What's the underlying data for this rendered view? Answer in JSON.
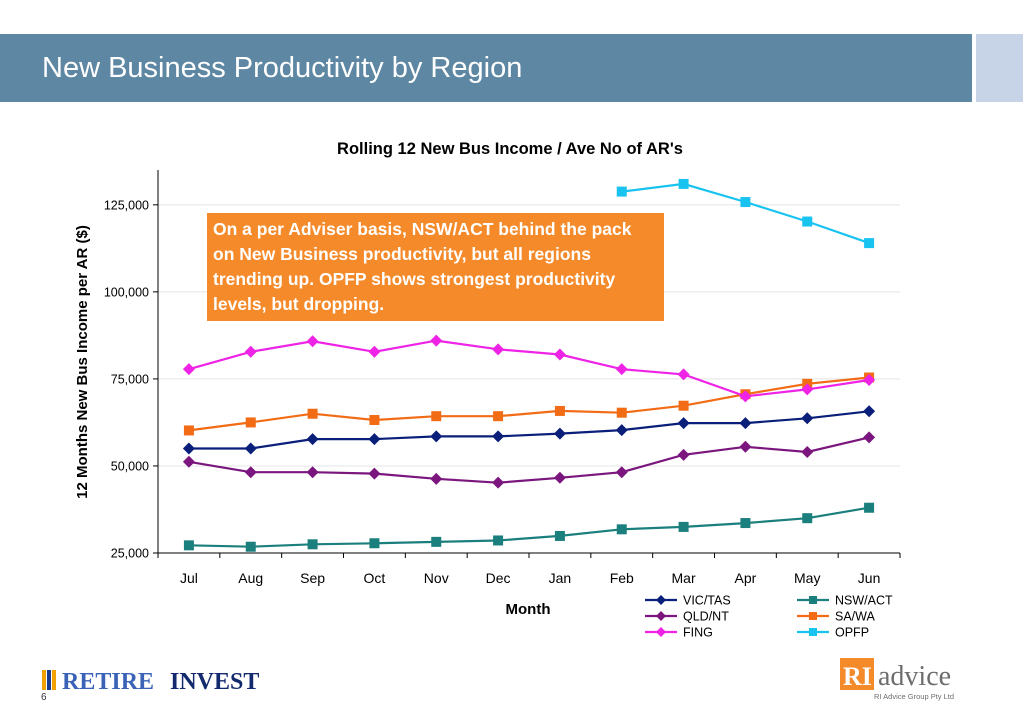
{
  "slide": {
    "title": "New Business Productivity by Region",
    "page_number": "6"
  },
  "callout": {
    "text": "On a per Adviser basis, NSW/ACT behind the pack on New Business productivity, but all regions trending up. OPFP shows strongest productivity levels, but dropping."
  },
  "logos": {
    "left": {
      "part1": "RETIRE",
      "part2": "INVEST"
    },
    "right": {
      "mark": "RI",
      "word": "advice",
      "tagline": "RI Advice Group Pty Ltd"
    }
  },
  "colors": {
    "header_band": "#5e87a3",
    "callout_bg": "#f58a2a"
  },
  "chart_data": {
    "type": "line",
    "title": "Rolling 12 New Bus Income / Ave No of AR's",
    "xlabel": "Month",
    "ylabel": "12 Months New Bus Income per AR ($)",
    "categories": [
      "Jul",
      "Aug",
      "Sep",
      "Oct",
      "Nov",
      "Dec",
      "Jan",
      "Feb",
      "Mar",
      "Apr",
      "May",
      "Jun"
    ],
    "ylim": [
      25000,
      135000
    ],
    "yticks": [
      25000,
      50000,
      75000,
      100000,
      125000
    ],
    "ytick_labels": [
      "25,000",
      "50,000",
      "75,000",
      "100,000",
      "125,000"
    ],
    "grid": true,
    "legend_position": "bottom-right",
    "series": [
      {
        "name": "VIC/TAS",
        "color": "#0a1f7a",
        "marker": "diamond",
        "values": [
          55000,
          55000,
          57700,
          57700,
          58500,
          58500,
          59300,
          60300,
          62300,
          62300,
          63700,
          65700
        ]
      },
      {
        "name": "NSW/ACT",
        "color": "#1b7f7e",
        "marker": "square",
        "values": [
          27200,
          26800,
          27500,
          27800,
          28200,
          28600,
          29900,
          31800,
          32500,
          33600,
          35000,
          38000
        ]
      },
      {
        "name": "QLD/NT",
        "color": "#7a167d",
        "marker": "diamond",
        "values": [
          51200,
          48200,
          48200,
          47800,
          46300,
          45200,
          46600,
          48200,
          53200,
          55500,
          54000,
          58200
        ]
      },
      {
        "name": "SA/WA",
        "color": "#f26b15",
        "marker": "square",
        "values": [
          60200,
          62500,
          65000,
          63200,
          64300,
          64300,
          65800,
          65300,
          67300,
          70600,
          73600,
          75400
        ]
      },
      {
        "name": "FING",
        "color": "#ee23e6",
        "marker": "diamond",
        "values": [
          77800,
          82800,
          85800,
          82800,
          86000,
          83500,
          82000,
          77800,
          76300,
          70000,
          72000,
          74700
        ]
      },
      {
        "name": "OPFP",
        "color": "#19c3f0",
        "marker": "square",
        "values": [
          null,
          null,
          null,
          null,
          null,
          null,
          null,
          128800,
          131000,
          125800,
          120200,
          114000
        ]
      }
    ]
  }
}
